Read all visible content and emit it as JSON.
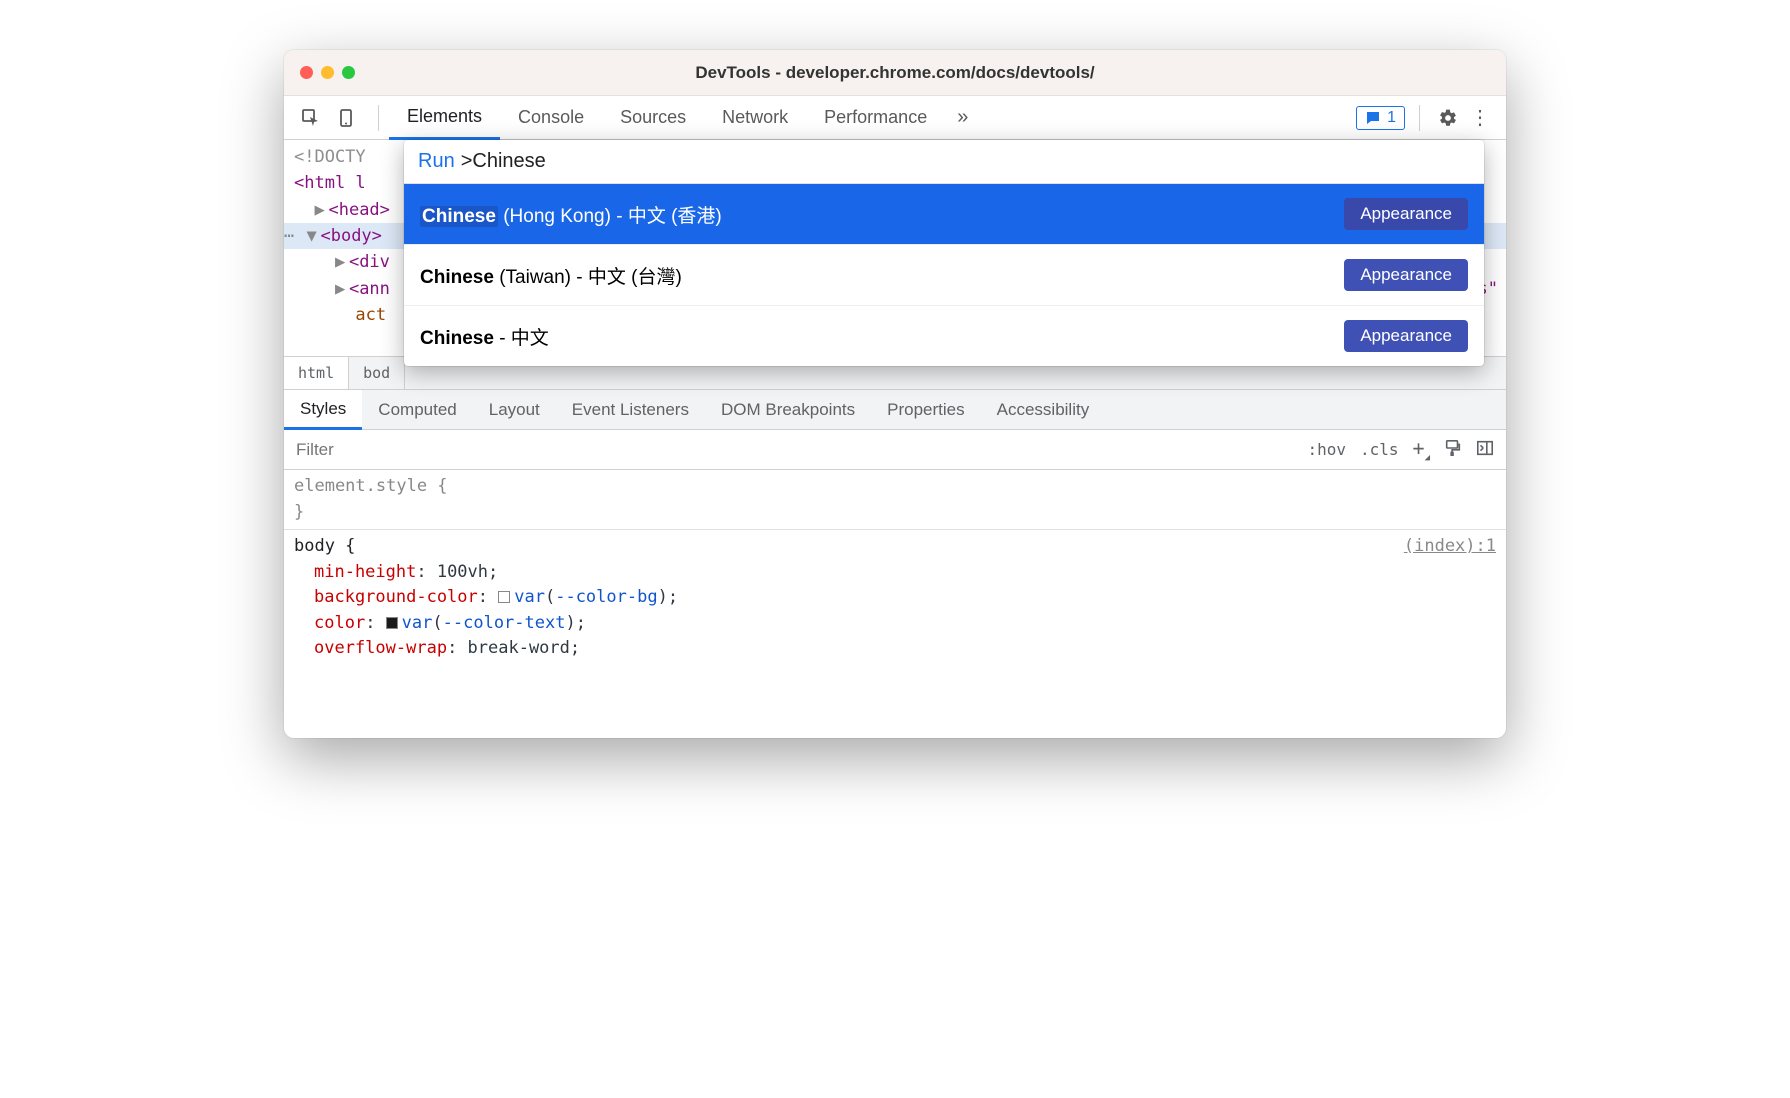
{
  "window": {
    "title": "DevTools - developer.chrome.com/docs/devtools/",
    "traffic_colors": {
      "close": "#ff5f57",
      "min": "#febc2e",
      "max": "#28c840"
    }
  },
  "main_tabs": {
    "items": [
      "Elements",
      "Console",
      "Sources",
      "Network",
      "Performance"
    ],
    "active": 0
  },
  "issues": {
    "count": "1"
  },
  "dom": {
    "doctype": "<!DOCTY",
    "html_open": "<html l",
    "head": "<head>",
    "body": "<body>",
    "div": "<div",
    "ann": "<ann",
    "ann_tail": "es\"",
    "act": "act"
  },
  "breadcrumb": {
    "items": [
      "html",
      "bod"
    ]
  },
  "secondary_tabs": {
    "items": [
      "Styles",
      "Computed",
      "Layout",
      "Event Listeners",
      "DOM Breakpoints",
      "Properties",
      "Accessibility"
    ],
    "active": 0
  },
  "filter": {
    "placeholder": "Filter",
    "hov": ":hov",
    "cls": ".cls",
    "plus": "+"
  },
  "styles": {
    "element_style": "element.style {",
    "close_brace": "}",
    "body_sel": "body {",
    "source": "(index):1",
    "rules": [
      {
        "prop": "min-height",
        "val": "100vh",
        "kind": "plain"
      },
      {
        "prop": "background-color",
        "var": "--color-bg",
        "swatch": "light"
      },
      {
        "prop": "color",
        "var": "--color-text",
        "swatch": "dark"
      },
      {
        "prop": "overflow-wrap",
        "val": "break-word",
        "kind": "plain"
      }
    ]
  },
  "command_menu": {
    "prompt": "Run",
    "query": ">Chinese",
    "results": [
      {
        "match": "Chinese",
        "rest": " (Hong Kong) - 中文 (香港)",
        "badge": "Appearance",
        "selected": true
      },
      {
        "match": "Chinese",
        "rest": " (Taiwan) - 中文 (台灣)",
        "badge": "Appearance",
        "selected": false
      },
      {
        "match": "Chinese",
        "rest": " - 中文",
        "badge": "Appearance",
        "selected": false
      }
    ]
  },
  "colors": {
    "blue_primary": "#1a73e8",
    "blue_selected": "#1967e8",
    "badge": "#3f51b5",
    "titlebar_bg": "#f7f2ef"
  }
}
